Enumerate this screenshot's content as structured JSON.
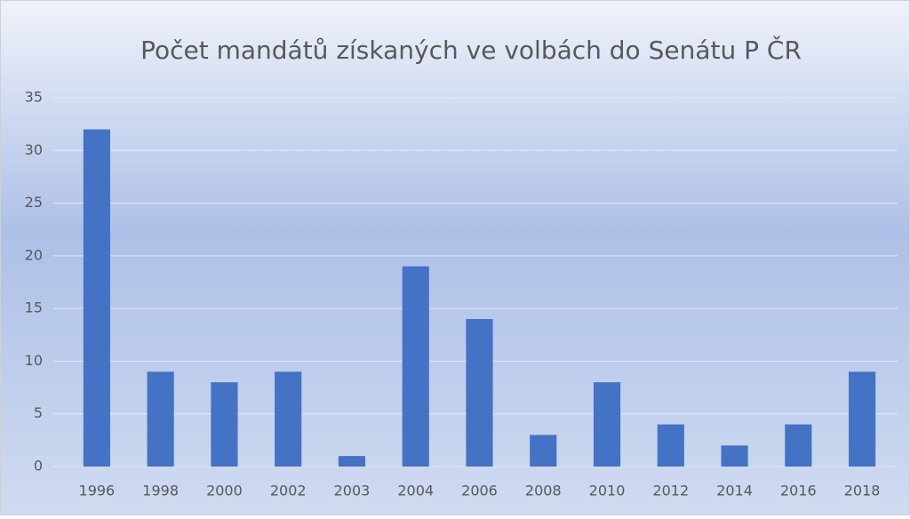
{
  "chart_data": {
    "type": "bar",
    "title": "Počet mandátů získaných ve volbách do Senátu P ČR",
    "categories": [
      "1996",
      "1998",
      "2000",
      "2002",
      "2003",
      "2004",
      "2006",
      "2008",
      "2010",
      "2012",
      "2014",
      "2016",
      "2018"
    ],
    "values": [
      32,
      9,
      8,
      9,
      1,
      19,
      14,
      3,
      8,
      4,
      2,
      4,
      9
    ],
    "color": "#4472c4",
    "ylim": [
      0,
      35
    ],
    "yticks": [
      0,
      5,
      10,
      15,
      20,
      25,
      30,
      35
    ],
    "grid": true
  }
}
